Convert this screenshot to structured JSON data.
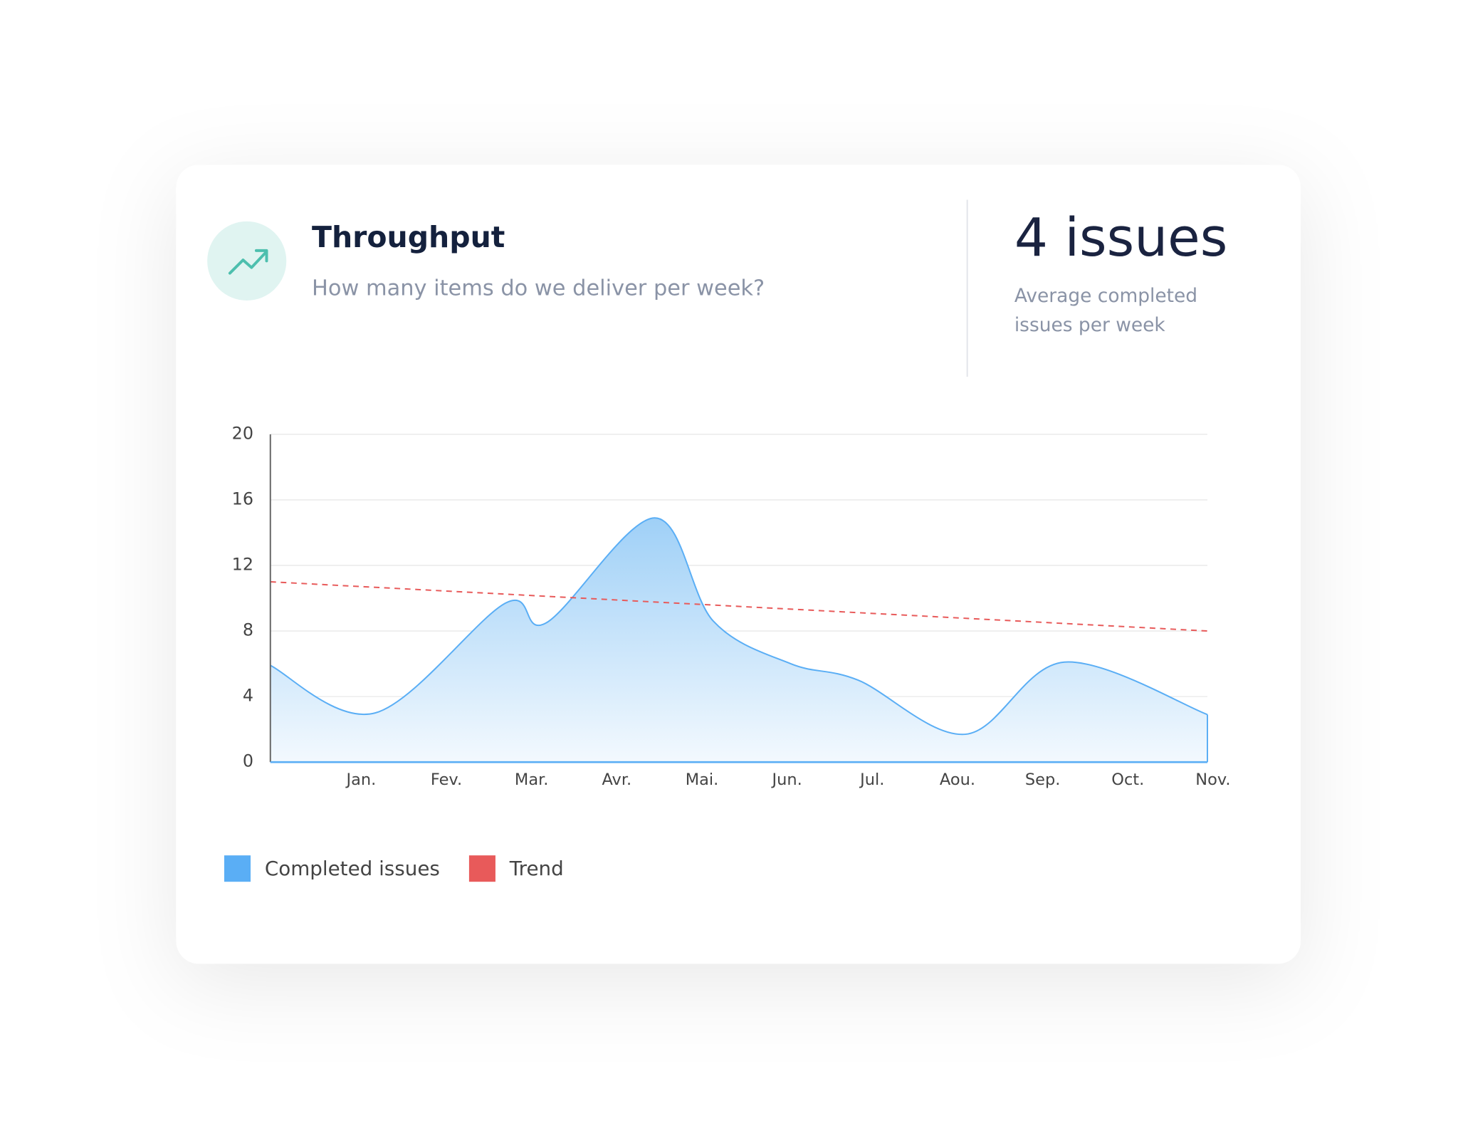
{
  "header": {
    "title": "Throughput",
    "subtitle": "How many items do we deliver per week?"
  },
  "stat": {
    "value": "4 issues",
    "label_lines": [
      "Average completed",
      "issues per week"
    ]
  },
  "chart_data": {
    "type": "line",
    "x": [
      0,
      1.23,
      2.76,
      3.24,
      4.51,
      5.2,
      6.11,
      6.9,
      8.16,
      9.32,
      11
    ],
    "series": [
      {
        "name": "Completed issues",
        "color": "#5aaef5",
        "area": true,
        "values": [
          5.9,
          3.0,
          9.7,
          8.5,
          14.9,
          8.6,
          6.0,
          5.0,
          1.7,
          6.1,
          2.9
        ]
      },
      {
        "name": "Trend",
        "color": "#e85a5a",
        "dashed": true,
        "x": [
          0,
          11
        ],
        "values": [
          11,
          8
        ]
      }
    ],
    "xlim": [
      0,
      11
    ],
    "xticks": [
      {
        "value": 1,
        "label": "Jan."
      },
      {
        "value": 2,
        "label": "Fev."
      },
      {
        "value": 3,
        "label": "Mar."
      },
      {
        "value": 4,
        "label": "Avr."
      },
      {
        "value": 5,
        "label": "Mai."
      },
      {
        "value": 6,
        "label": "Jun."
      },
      {
        "value": 7,
        "label": "Jul."
      },
      {
        "value": 8,
        "label": "Aou."
      },
      {
        "value": 9,
        "label": "Sep."
      },
      {
        "value": 10,
        "label": "Oct."
      },
      {
        "value": 11,
        "label": "Nov."
      }
    ],
    "ylim": [
      0,
      20
    ],
    "yticks": [
      0,
      4,
      8,
      12,
      16,
      20
    ],
    "grid": true,
    "legend": "bottom-left"
  }
}
